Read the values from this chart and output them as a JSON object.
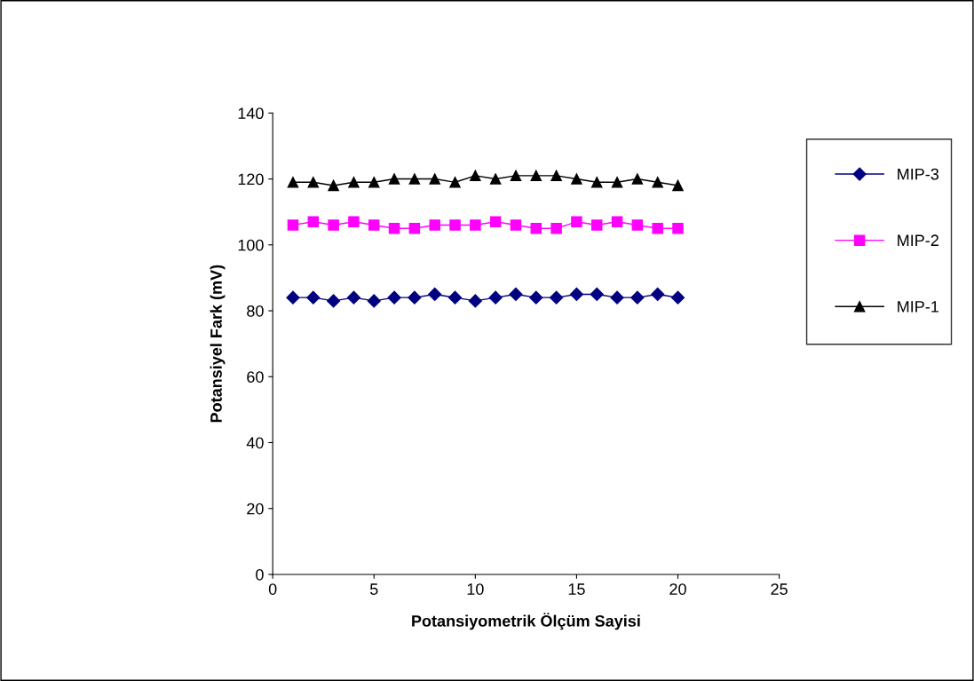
{
  "chart_data": {
    "type": "line",
    "xlabel": "Potansiyometrik Ölçüm Sayisi",
    "ylabel": "Potansiyel Fark (mV)",
    "x": [
      1,
      2,
      3,
      4,
      5,
      6,
      7,
      8,
      9,
      10,
      11,
      12,
      13,
      14,
      15,
      16,
      17,
      18,
      19,
      20
    ],
    "series": [
      {
        "name": "MIP-3",
        "color": "#000080",
        "marker": "diamond",
        "values": [
          84,
          84,
          83,
          84,
          83,
          84,
          84,
          85,
          84,
          83,
          84,
          85,
          84,
          84,
          85,
          85,
          84,
          84,
          85,
          84
        ]
      },
      {
        "name": "MIP-2",
        "color": "#ff00ff",
        "marker": "square",
        "values": [
          106,
          107,
          106,
          107,
          106,
          105,
          105,
          106,
          106,
          106,
          107,
          106,
          105,
          105,
          107,
          106,
          107,
          106,
          105,
          105
        ]
      },
      {
        "name": "MIP-1",
        "color": "#000000",
        "marker": "triangle",
        "values": [
          119,
          119,
          118,
          119,
          119,
          120,
          120,
          120,
          119,
          121,
          120,
          121,
          121,
          121,
          120,
          119,
          119,
          120,
          119,
          118
        ]
      }
    ],
    "xlim": [
      0,
      25
    ],
    "xticks": [
      0,
      5,
      10,
      15,
      20,
      25
    ],
    "ylim": [
      0,
      140
    ],
    "yticks": [
      0,
      20,
      40,
      60,
      80,
      100,
      120,
      140
    ],
    "grid": false,
    "legend": "right"
  }
}
